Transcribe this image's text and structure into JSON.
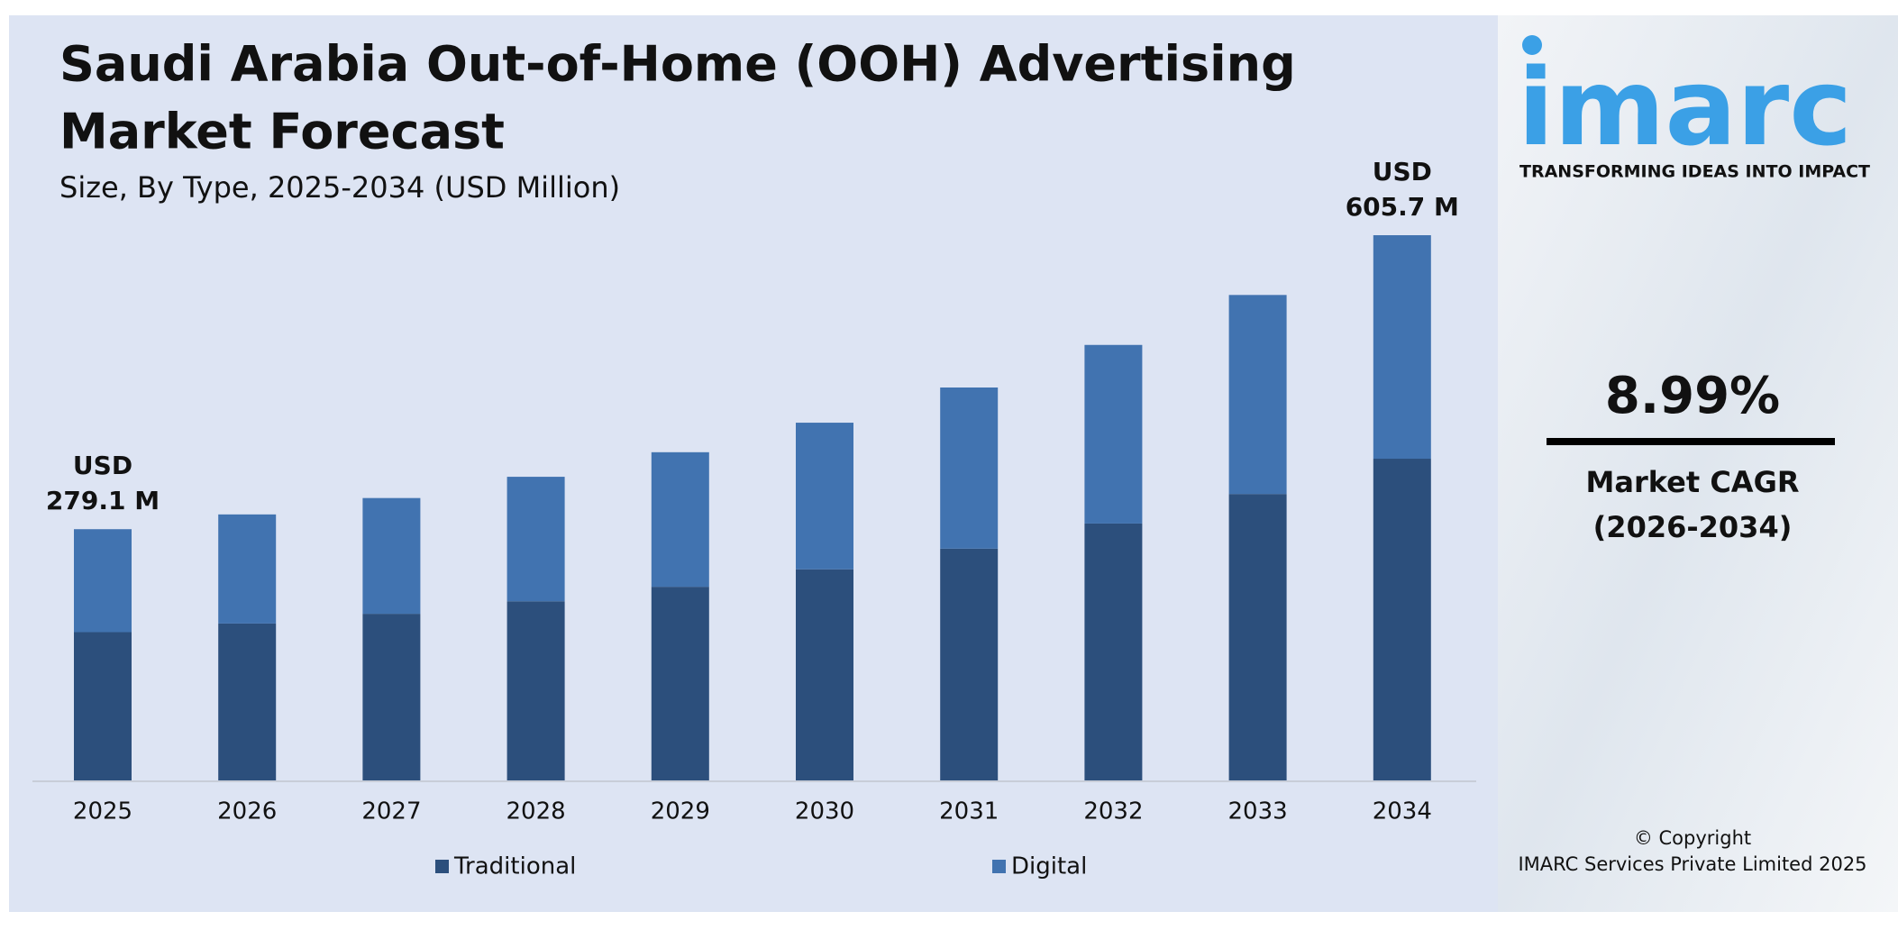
{
  "chart_data": {
    "type": "stacked_bar",
    "title": [
      "Saudi Arabia Out-of-Home (OOH) Advertising",
      "Market Forecast"
    ],
    "subtitle": "Size, By Type, 2025-2034 (USD Million)",
    "categories": [
      "2025",
      "2026",
      "2027",
      "2028",
      "2029",
      "2030",
      "2031",
      "2032",
      "2033",
      "2034"
    ],
    "series": [
      {
        "name": "Traditional",
        "color": "#2c4f7c",
        "values": [
          164.7,
          174.3,
          185.1,
          199.0,
          215.1,
          234.5,
          257.5,
          285.4,
          318.2,
          357.4
        ]
      },
      {
        "name": "Digital",
        "color": "#4173b0",
        "values": [
          114.4,
          121.2,
          128.6,
          138.3,
          149.5,
          162.9,
          179.0,
          198.4,
          221.1,
          248.3
        ]
      }
    ],
    "total_labels": [
      {
        "category": "2025",
        "lines": [
          "USD",
          "279.1 M"
        ]
      },
      {
        "category": "2034",
        "lines": [
          "USD",
          "605.7 M"
        ]
      }
    ]
  },
  "sidebar": {
    "logo": "imarc",
    "tagline": "TRANSFORMING IDEAS INTO IMPACT",
    "cagr": "8.99%",
    "cagr_label": [
      "Market CAGR",
      "(2026-2034)"
    ],
    "copyright": [
      "© Copyright",
      "IMARC Services Private Limited 2025"
    ]
  }
}
